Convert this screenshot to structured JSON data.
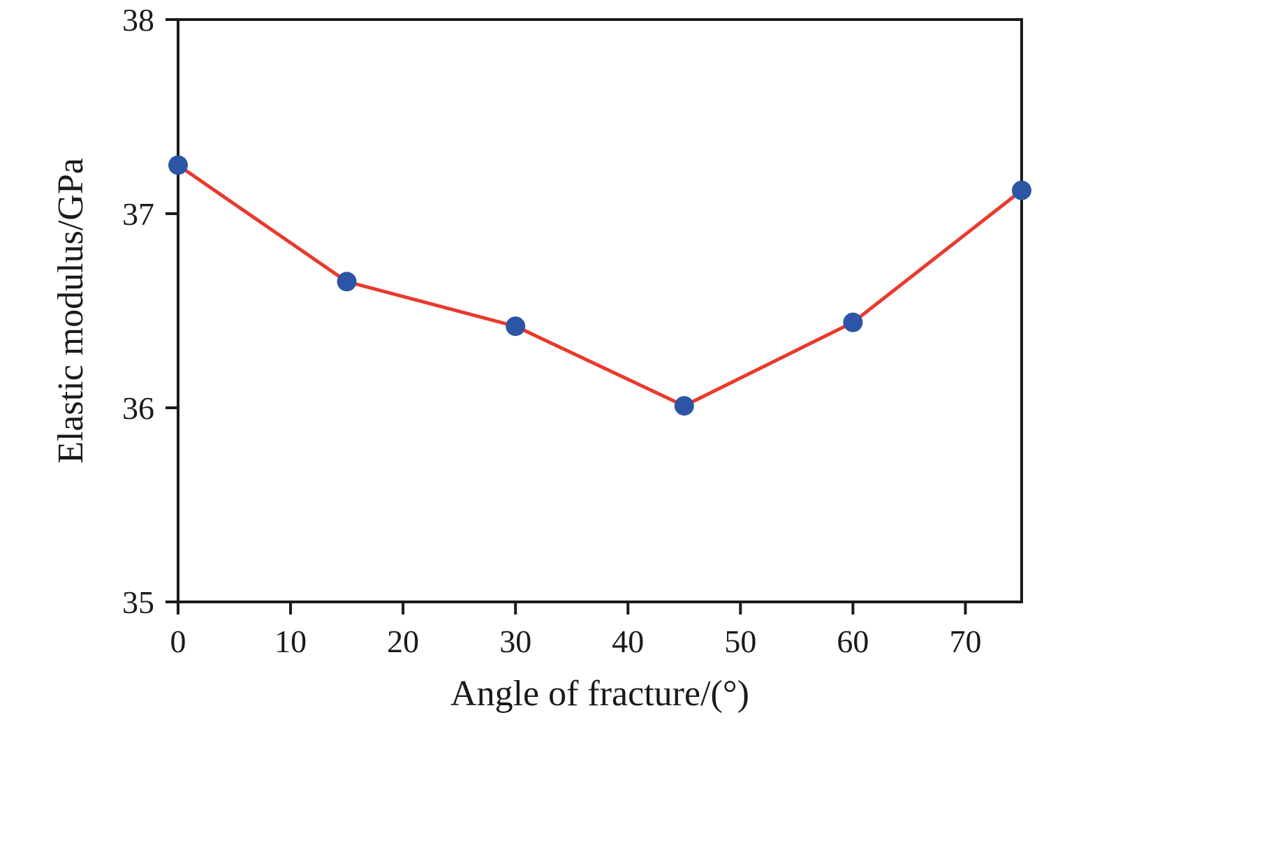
{
  "chart_data": {
    "type": "line",
    "title": "",
    "xlabel": "Angle of fracture/(°)",
    "ylabel": "Elastic modulus/GPa",
    "x": [
      0,
      15,
      30,
      45,
      60,
      75
    ],
    "series": [
      {
        "name": "Elastic modulus",
        "values": [
          37.25,
          36.65,
          36.42,
          36.01,
          36.44,
          37.12
        ]
      }
    ],
    "xlim": [
      0,
      75
    ],
    "ylim": [
      35,
      38
    ],
    "x_ticks": [
      0,
      10,
      20,
      30,
      40,
      50,
      60,
      70
    ],
    "y_ticks": [
      35,
      36,
      37,
      38
    ],
    "grid": false,
    "legend_position": "none",
    "line_color": "#e83a2e",
    "marker_color": "#2d55a5",
    "axis_color": "#1a1a1a",
    "background_color": "#ffffff"
  }
}
